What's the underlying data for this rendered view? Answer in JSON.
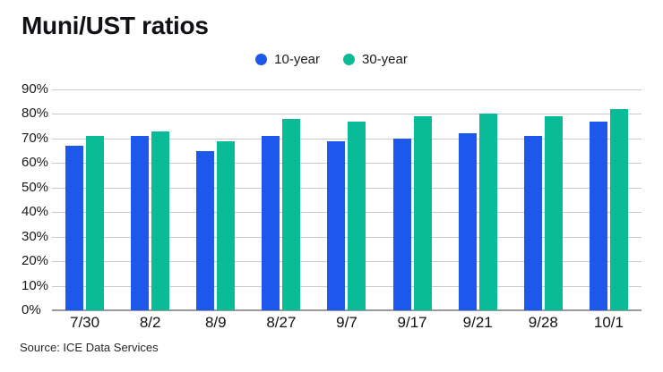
{
  "title": "Muni/UST ratios",
  "source": "Source: ICE Data Services",
  "chart_data": {
    "type": "bar",
    "title": "Muni/UST ratios",
    "categories": [
      "7/30",
      "8/2",
      "8/9",
      "8/27",
      "9/7",
      "9/17",
      "9/21",
      "9/28",
      "10/1"
    ],
    "series": [
      {
        "name": "10-year",
        "color": "#1e57ec",
        "values": [
          67,
          71,
          65,
          71,
          69,
          70,
          72,
          71,
          77
        ]
      },
      {
        "name": "30-year",
        "color": "#0abb97",
        "values": [
          71,
          73,
          69,
          78,
          77,
          79,
          80,
          79,
          82
        ]
      }
    ],
    "xlabel": "",
    "ylabel": "",
    "ylim": [
      0,
      90
    ],
    "yticks": [
      "0%",
      "10%",
      "20%",
      "30%",
      "40%",
      "50%",
      "60%",
      "70%",
      "80%",
      "90%"
    ],
    "grid": true,
    "legend_position": "top-center",
    "gridline_color": "#c9c9c9",
    "axis_line_color": "#9a9a9a",
    "source": "Source: ICE Data Services"
  }
}
